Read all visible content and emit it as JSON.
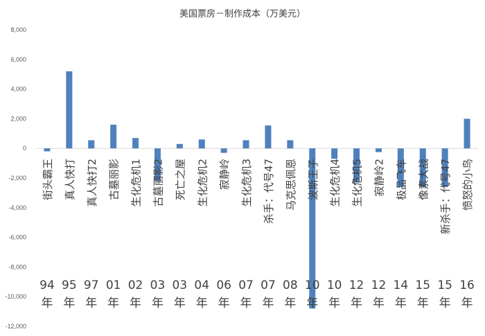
{
  "chart_data": {
    "type": "bar",
    "title": "美国票房－制作成本（万美元）",
    "xlabel": "",
    "ylabel": "",
    "ylim": [
      -12000,
      8000
    ],
    "yticks": [
      "8,000",
      "6,000",
      "4,000",
      "2,000",
      "0",
      "-2,000",
      "-4,000",
      "-6,000",
      "-8,000",
      "-10,000",
      "-12,000"
    ],
    "ytick_values": [
      8000,
      6000,
      4000,
      2000,
      0,
      -2000,
      -4000,
      -6000,
      -8000,
      -10000,
      -12000
    ],
    "grid": false,
    "legend": "none",
    "bar_color": "#4f81bd",
    "categories": [
      {
        "year": "94",
        "year_suffix": "年",
        "name": "街头霸王"
      },
      {
        "year": "95",
        "year_suffix": "年",
        "name": "真人快打"
      },
      {
        "year": "97",
        "year_suffix": "年",
        "name": "真人快打2"
      },
      {
        "year": "01",
        "year_suffix": "年",
        "name": "古墓丽影"
      },
      {
        "year": "02",
        "year_suffix": "年",
        "name": "生化危机1"
      },
      {
        "year": "03",
        "year_suffix": "年",
        "name": "古墓丽影2"
      },
      {
        "year": "03",
        "year_suffix": "年",
        "name": "死亡之屋"
      },
      {
        "year": "04",
        "year_suffix": "年",
        "name": "生化危机2"
      },
      {
        "year": "06",
        "year_suffix": "年",
        "name": "寂静岭"
      },
      {
        "year": "07",
        "year_suffix": "年",
        "name": "生化危机3"
      },
      {
        "year": "07",
        "year_suffix": "年",
        "name": "杀手：代号47"
      },
      {
        "year": "08",
        "year_suffix": "年",
        "name": "马克思佩恩"
      },
      {
        "year": "10",
        "year_suffix": "年",
        "name": "波斯王子"
      },
      {
        "year": "10",
        "year_suffix": "年",
        "name": "生化危机4"
      },
      {
        "year": "12",
        "year_suffix": "年",
        "name": "生化危机5"
      },
      {
        "year": "12",
        "year_suffix": "年",
        "name": "寂静岭2"
      },
      {
        "year": "14",
        "year_suffix": "年",
        "name": "极品飞车"
      },
      {
        "year": "15",
        "year_suffix": "年",
        "name": "像素大战"
      },
      {
        "year": "15",
        "year_suffix": "年",
        "name": "新杀手：代号47"
      },
      {
        "year": "16",
        "year_suffix": "年",
        "name": "愤怒的小鸟"
      }
    ],
    "values": [
      -200,
      5200,
      550,
      1600,
      700,
      -2200,
      300,
      600,
      -300,
      550,
      1550,
      550,
      -10800,
      -700,
      -2300,
      -250,
      -2600,
      -2600,
      -2600,
      2000
    ]
  }
}
